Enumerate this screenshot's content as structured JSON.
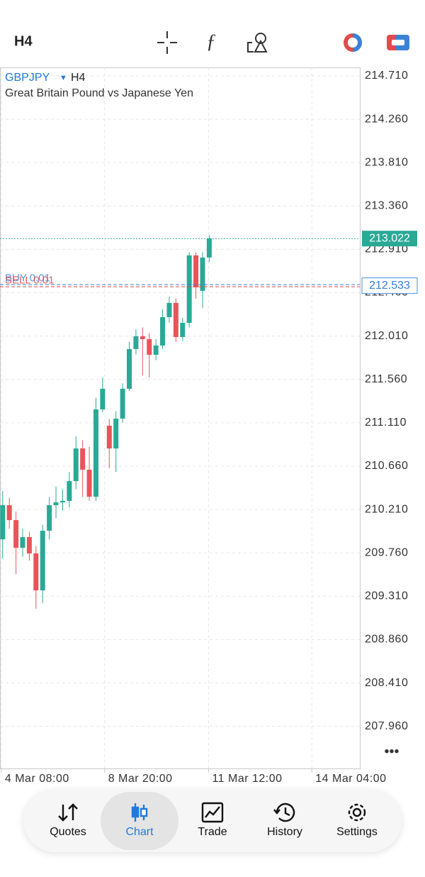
{
  "header": {
    "timeframe": "H4"
  },
  "chart_data": {
    "type": "candlestick",
    "symbol": "GBPJPY",
    "timeframe": "H4",
    "description": "Great Britain Pound vs Japanese Yen",
    "open": [
      209.901,
      210.255,
      210.1,
      209.813,
      209.924,
      209.754,
      209.371,
      209.99,
      210.255,
      210.284,
      210.299,
      210.505,
      210.844,
      210.623,
      210.343,
      211.249,
      211.08,
      210.844,
      211.153,
      211.463,
      211.875,
      212.008,
      211.978,
      211.816,
      211.912,
      212.206,
      212.354,
      212.0,
      212.147,
      212.847,
      212.479,
      212.825
    ],
    "high": [
      210.4,
      210.33,
      210.19,
      210.01,
      209.98,
      209.83,
      210.05,
      210.34,
      210.45,
      210.42,
      210.6,
      210.97,
      210.93,
      210.86,
      211.37,
      211.58,
      211.15,
      211.23,
      211.52,
      211.95,
      212.08,
      212.1,
      212.04,
      211.98,
      212.29,
      212.42,
      212.4,
      212.2,
      212.88,
      212.88,
      212.88,
      213.06
    ],
    "low": [
      209.7,
      210.01,
      209.54,
      209.72,
      209.68,
      209.18,
      209.24,
      209.9,
      210.12,
      210.2,
      210.23,
      210.42,
      210.34,
      210.3,
      210.3,
      211.22,
      210.64,
      210.6,
      211.11,
      211.44,
      211.82,
      211.6,
      211.58,
      211.76,
      211.88,
      212.15,
      211.95,
      211.96,
      212.1,
      212.4,
      212.3,
      212.78
    ],
    "close": [
      210.255,
      210.1,
      209.813,
      209.924,
      209.754,
      209.371,
      209.99,
      210.255,
      210.284,
      210.299,
      210.505,
      210.844,
      210.623,
      210.343,
      211.249,
      211.463,
      210.844,
      211.153,
      211.463,
      211.875,
      212.008,
      211.978,
      211.816,
      211.912,
      212.206,
      212.354,
      212.0,
      212.147,
      212.847,
      212.516,
      212.825,
      213.022
    ],
    "up_color": "#2aa996",
    "down_color": "#e9545a",
    "ylim": [
      207.523,
      214.798
    ],
    "yticks": [
      {
        "value": 214.71,
        "label": "214.710"
      },
      {
        "value": 214.26,
        "label": "214.260"
      },
      {
        "value": 213.81,
        "label": "213.810"
      },
      {
        "value": 213.36,
        "label": "213.360"
      },
      {
        "value": 212.91,
        "label": "212.910"
      },
      {
        "value": 212.46,
        "label": "212.460"
      },
      {
        "value": 212.01,
        "label": "212.010"
      },
      {
        "value": 211.56,
        "label": "211.560"
      },
      {
        "value": 211.11,
        "label": "211.110"
      },
      {
        "value": 210.66,
        "label": "210.660"
      },
      {
        "value": 210.21,
        "label": "210.210"
      },
      {
        "value": 209.76,
        "label": "209.760"
      },
      {
        "value": 209.31,
        "label": "209.310"
      },
      {
        "value": 208.86,
        "label": "208.860"
      },
      {
        "value": 208.41,
        "label": "208.410"
      },
      {
        "value": 207.96,
        "label": "207.960"
      }
    ],
    "xlim": [
      -0.4,
      53.6
    ],
    "xticks": [
      {
        "value": -0.2,
        "label": "4 Mar 08:00"
      },
      {
        "value": 15.3,
        "label": "8 Mar 20:00"
      },
      {
        "value": 30.9,
        "label": "11 Mar 12:00"
      },
      {
        "value": 46.4,
        "label": "14 Mar 04:00"
      }
    ],
    "grid": true,
    "last_price": 213.022,
    "open_price": 212.533,
    "positions": [
      {
        "label": "BUY 0.01",
        "color": "#3a7fd5"
      },
      {
        "label": "SELL 0.01",
        "color": "#e0454d"
      }
    ]
  },
  "nav": [
    {
      "label": "Quotes"
    },
    {
      "label": "Chart",
      "active": true
    },
    {
      "label": "Trade"
    },
    {
      "label": "History"
    },
    {
      "label": "Settings"
    }
  ]
}
